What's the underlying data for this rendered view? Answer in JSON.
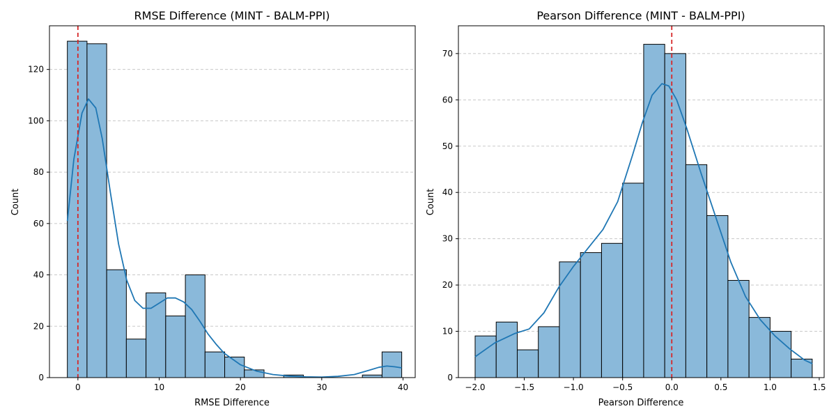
{
  "chart_data": [
    {
      "type": "bar",
      "title": "RMSE Difference (MINT - BALM-PPI)",
      "xlabel": "RMSE Difference",
      "ylabel": "Count",
      "xlim": [
        -3.5,
        41.5
      ],
      "ylim": [
        0,
        137
      ],
      "x_ticks": [
        0,
        10,
        20,
        30,
        40
      ],
      "y_ticks": [
        0,
        20,
        40,
        60,
        80,
        100,
        120
      ],
      "grid": "y-dashed",
      "bin_edges": [
        -1.3,
        1.12,
        3.54,
        5.96,
        8.38,
        10.8,
        13.22,
        15.64,
        18.06,
        20.48,
        22.9,
        25.32,
        27.74,
        30.16,
        32.58,
        35.0,
        37.42,
        39.84
      ],
      "values": [
        131,
        130,
        42,
        15,
        33,
        24,
        40,
        10,
        8,
        3,
        0,
        1,
        0,
        0,
        0,
        1,
        10
      ],
      "reference_line": {
        "x": 0,
        "color": "#d62728",
        "style": "dashed"
      },
      "kde": {
        "x": [
          -1.3,
          -0.5,
          0.5,
          1.3,
          2.2,
          3.0,
          4.0,
          5.0,
          6.0,
          7.0,
          8.0,
          9.0,
          10.0,
          11.0,
          12.0,
          13.0,
          14.0,
          15.0,
          16.0,
          17.0,
          18.0,
          20.0,
          22.0,
          24.0,
          26.0,
          28.0,
          30.0,
          32.0,
          34.0,
          36.0,
          37.0,
          38.0,
          39.0,
          39.84
        ],
        "y": [
          61,
          85,
          103,
          108.5,
          105,
          93,
          72,
          52,
          38,
          30,
          27,
          27,
          29,
          31,
          31,
          29.5,
          26.5,
          22,
          17,
          13,
          9.5,
          5,
          2.5,
          1.2,
          0.6,
          0.3,
          0.2,
          0.5,
          1.2,
          3,
          4,
          4.5,
          4.2,
          3.8
        ]
      },
      "colors": {
        "bar_fill": "#8ab9da",
        "bar_edge": "#000000",
        "kde": "#1f77b4",
        "grid": "#c8c8c8"
      }
    },
    {
      "type": "bar",
      "title": "Pearson Difference (MINT - BALM-PPI)",
      "xlabel": "Pearson Difference",
      "ylabel": "Count",
      "xlim": [
        -2.17,
        1.55
      ],
      "ylim": [
        0,
        76
      ],
      "x_ticks": [
        -2.0,
        -1.5,
        -1.0,
        -0.5,
        0.0,
        0.5,
        1.0,
        1.5
      ],
      "x_tick_labels": [
        "−2.0",
        "−1.5",
        "−1.0",
        "−0.5",
        "0.0",
        "0.5",
        "1.0",
        "1.5"
      ],
      "y_ticks": [
        0,
        10,
        20,
        30,
        40,
        50,
        60,
        70
      ],
      "grid": "y-dashed",
      "bin_edges": [
        -2.0,
        -1.7857,
        -1.5714,
        -1.3571,
        -1.1429,
        -0.9286,
        -0.7143,
        -0.5,
        -0.2857,
        -0.0714,
        0.1429,
        0.3571,
        0.5714,
        0.7857,
        1.0,
        1.2143,
        1.4286
      ],
      "values": [
        9,
        12,
        6,
        11,
        25,
        27,
        29,
        42,
        72,
        70,
        46,
        35,
        21,
        13,
        10,
        4
      ],
      "reference_line": {
        "x": 0,
        "color": "#d62728",
        "style": "dashed"
      },
      "kde": {
        "x": [
          -2.0,
          -1.8,
          -1.6,
          -1.45,
          -1.3,
          -1.15,
          -1.0,
          -0.85,
          -0.7,
          -0.55,
          -0.4,
          -0.3,
          -0.2,
          -0.1,
          -0.03,
          0.05,
          0.15,
          0.3,
          0.45,
          0.6,
          0.75,
          0.9,
          1.05,
          1.2,
          1.35,
          1.43
        ],
        "y": [
          4.5,
          7.5,
          9.5,
          10.5,
          14,
          19.5,
          24,
          28,
          32,
          38,
          48,
          55,
          61,
          63.5,
          63,
          60,
          54,
          44,
          34.5,
          25,
          17.5,
          12.5,
          9,
          6.2,
          3.8,
          3
        ]
      },
      "colors": {
        "bar_fill": "#8ab9da",
        "bar_edge": "#000000",
        "kde": "#1f77b4",
        "grid": "#c8c8c8"
      }
    }
  ]
}
